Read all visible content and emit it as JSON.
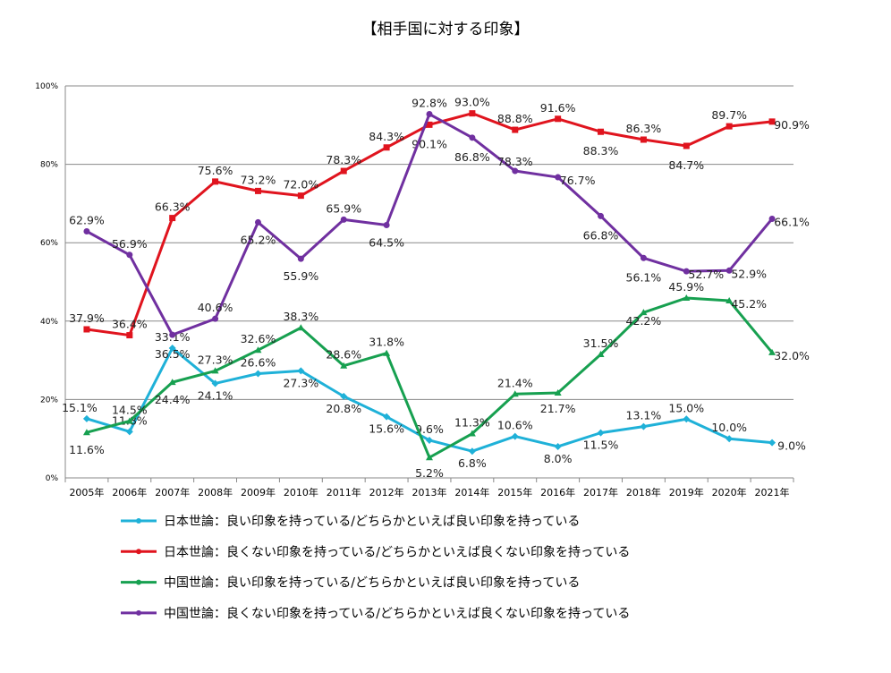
{
  "chart_data": {
    "type": "line",
    "title": "【相手国に対する印象】",
    "xlabel": "",
    "ylabel": "",
    "categories": [
      "2005年",
      "2006年",
      "2007年",
      "2008年",
      "2009年",
      "2010年",
      "2011年",
      "2012年",
      "2013年",
      "2014年",
      "2015年",
      "2016年",
      "2017年",
      "2018年",
      "2019年",
      "2020年",
      "2021年"
    ],
    "yticks": [
      "0%",
      "20%",
      "40%",
      "60%",
      "80%",
      "100%"
    ],
    "ylim": [
      0,
      100
    ],
    "grid": true,
    "legend_placement": "bottom",
    "series": [
      {
        "name": "日本世論：良い印象を持っている/どちらかといえば良い印象を持っている",
        "color": "#1fb1d8",
        "marker": "diamond",
        "values": [
          15.1,
          11.8,
          33.1,
          24.1,
          26.6,
          27.3,
          20.8,
          15.6,
          9.6,
          6.8,
          10.6,
          8.0,
          11.5,
          13.1,
          15.0,
          10.0,
          9.0
        ]
      },
      {
        "name": "日本世論：良くない印象を持っている/どちらかといえば良くない印象を持っている",
        "color": "#e0141e",
        "marker": "square",
        "values": [
          37.9,
          36.4,
          66.3,
          75.6,
          73.2,
          72.0,
          78.3,
          84.3,
          90.1,
          93.0,
          88.8,
          91.6,
          88.3,
          86.3,
          84.7,
          89.7,
          90.9
        ]
      },
      {
        "name": "中国世論：良い印象を持っている/どちらかといえば良い印象を持っている",
        "color": "#17a050",
        "marker": "triangle",
        "values": [
          11.6,
          14.5,
          24.4,
          27.3,
          32.6,
          38.3,
          28.6,
          31.8,
          5.2,
          11.3,
          21.4,
          21.7,
          31.5,
          42.2,
          45.9,
          45.2,
          32.0
        ]
      },
      {
        "name": "中国世論：良くない印象を持っている/どちらかといえば良くない印象を持っている",
        "color": "#7030a0",
        "marker": "circle",
        "values": [
          62.9,
          56.9,
          36.5,
          40.6,
          65.2,
          55.9,
          65.9,
          64.5,
          92.8,
          86.8,
          78.3,
          76.7,
          66.8,
          56.1,
          52.7,
          52.9,
          66.1
        ]
      }
    ]
  }
}
